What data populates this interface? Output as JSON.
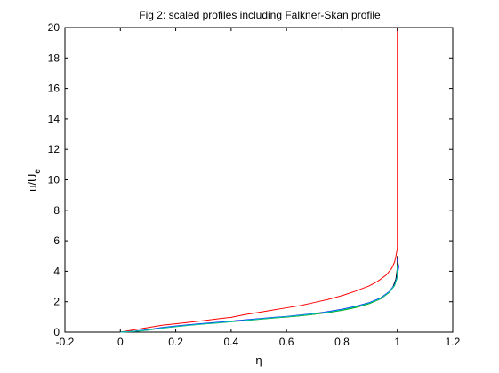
{
  "chart_data": {
    "type": "line",
    "title": "Fig 2: scaled profiles including Falkner-Skan profile",
    "xlabel": "η",
    "ylabel_main": "u/U",
    "ylabel_sub": "e",
    "xlim": [
      -0.2,
      1.2
    ],
    "ylim": [
      0,
      20
    ],
    "xticks": [
      -0.2,
      0,
      0.2,
      0.4,
      0.6,
      0.8,
      1,
      1.2
    ],
    "xtick_labels": [
      "-0.2",
      "0",
      "0.2",
      "0.4",
      "0.6",
      "0.8",
      "1",
      "1.2"
    ],
    "yticks": [
      0,
      2,
      4,
      6,
      8,
      10,
      12,
      14,
      16,
      18,
      20
    ],
    "ytick_labels": [
      "0",
      "2",
      "4",
      "6",
      "8",
      "10",
      "12",
      "14",
      "16",
      "18",
      "20"
    ],
    "grid": false,
    "legend": "none",
    "series": [
      {
        "color": "#ff0000",
        "x": [
          0,
          0.05,
          0.1,
          0.15,
          0.2,
          0.25,
          0.3,
          0.35,
          0.4,
          0.45,
          0.5,
          0.55,
          0.6,
          0.65,
          0.7,
          0.75,
          0.8,
          0.85,
          0.9,
          0.93,
          0.96,
          0.98,
          0.99,
          0.995,
          1,
          1,
          1,
          1
        ],
        "y": [
          0,
          0.15,
          0.3,
          0.45,
          0.55,
          0.65,
          0.75,
          0.87,
          0.97,
          1.15,
          1.3,
          1.45,
          1.6,
          1.75,
          1.95,
          2.15,
          2.4,
          2.7,
          3.05,
          3.35,
          3.75,
          4.2,
          4.6,
          5.0,
          5.5,
          8,
          14,
          20
        ]
      },
      {
        "color": "#000000",
        "x": [
          0,
          0.05,
          0.1,
          0.15,
          0.2,
          0.25,
          0.3,
          0.35,
          0.4,
          0.45,
          0.5,
          0.55,
          0.6,
          0.65,
          0.7,
          0.75,
          0.8,
          0.85,
          0.9,
          0.94,
          0.97,
          0.985,
          0.995,
          1.0,
          1.0
        ],
        "y": [
          0,
          0.05,
          0.15,
          0.28,
          0.38,
          0.47,
          0.55,
          0.62,
          0.7,
          0.77,
          0.85,
          0.93,
          1.0,
          1.08,
          1.18,
          1.3,
          1.45,
          1.65,
          1.9,
          2.2,
          2.6,
          3.0,
          3.5,
          4.2,
          5.0
        ]
      },
      {
        "color": "#0000ff",
        "x": [
          0,
          0.05,
          0.1,
          0.15,
          0.2,
          0.25,
          0.3,
          0.35,
          0.4,
          0.45,
          0.5,
          0.55,
          0.6,
          0.65,
          0.7,
          0.75,
          0.8,
          0.85,
          0.9,
          0.94,
          0.97,
          0.99,
          1.0,
          1.005,
          1.0
        ],
        "y": [
          0,
          0.06,
          0.16,
          0.3,
          0.4,
          0.49,
          0.57,
          0.64,
          0.72,
          0.8,
          0.88,
          0.96,
          1.03,
          1.12,
          1.22,
          1.35,
          1.5,
          1.7,
          1.95,
          2.25,
          2.65,
          3.1,
          3.7,
          4.3,
          4.8
        ]
      },
      {
        "color": "#00aa00",
        "x": [
          0,
          0.05,
          0.1,
          0.15,
          0.2,
          0.25,
          0.3,
          0.35,
          0.4,
          0.45,
          0.5,
          0.55,
          0.6,
          0.65,
          0.7,
          0.75,
          0.8,
          0.85,
          0.9,
          0.94,
          0.97,
          0.99,
          1.0,
          1.0
        ],
        "y": [
          0,
          0.04,
          0.13,
          0.26,
          0.36,
          0.45,
          0.53,
          0.6,
          0.68,
          0.76,
          0.84,
          0.92,
          0.99,
          1.07,
          1.17,
          1.28,
          1.43,
          1.62,
          1.88,
          2.2,
          2.6,
          3.05,
          3.6,
          4.4
        ]
      },
      {
        "color": "#00bfbf",
        "x": [
          0,
          0.05,
          0.1,
          0.15,
          0.2,
          0.25,
          0.3,
          0.35,
          0.4,
          0.45,
          0.5,
          0.55,
          0.6,
          0.65,
          0.7,
          0.75,
          0.8,
          0.85,
          0.9,
          0.94,
          0.97,
          0.99,
          1.0,
          1.0
        ],
        "y": [
          0,
          0.05,
          0.14,
          0.27,
          0.37,
          0.46,
          0.54,
          0.61,
          0.69,
          0.77,
          0.86,
          0.94,
          1.01,
          1.1,
          1.2,
          1.32,
          1.47,
          1.67,
          1.92,
          2.22,
          2.62,
          3.08,
          3.65,
          4.3
        ]
      }
    ]
  }
}
